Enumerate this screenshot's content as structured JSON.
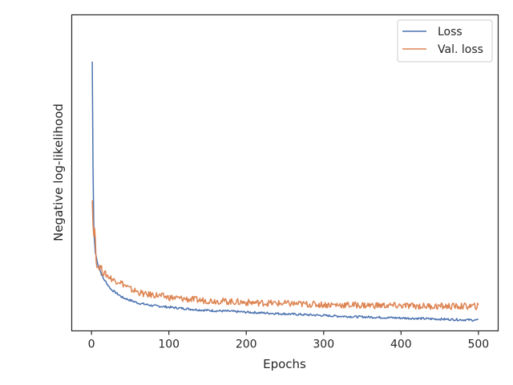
{
  "chart_data": {
    "type": "line",
    "title": "",
    "xlabel": "Epochs",
    "ylabel": "Negative log-likelihood",
    "xlim": [
      -25,
      525
    ],
    "ylim": [
      0,
      1
    ],
    "y_tick_labels_shown": false,
    "x_ticks": [
      0,
      100,
      200,
      300,
      400,
      500
    ],
    "x_tick_labels": [
      "0",
      "100",
      "200",
      "300",
      "400",
      "500"
    ],
    "grid": false,
    "legend_position": "top-right",
    "series": [
      {
        "name": "Loss",
        "color": "#4c72b0",
        "x": [
          1,
          2,
          3,
          4,
          5,
          6,
          8,
          10,
          12,
          15,
          20,
          25,
          30,
          35,
          40,
          50,
          60,
          70,
          80,
          90,
          100,
          120,
          140,
          160,
          180,
          200,
          225,
          250,
          275,
          300,
          325,
          350,
          375,
          400,
          425,
          450,
          475,
          500
        ],
        "values": [
          0.94,
          0.55,
          0.34,
          0.29,
          0.25,
          0.24,
          0.21,
          0.2,
          0.18,
          0.16,
          0.14,
          0.12,
          0.11,
          0.1,
          0.09,
          0.08,
          0.07,
          0.065,
          0.06,
          0.058,
          0.055,
          0.05,
          0.045,
          0.042,
          0.04,
          0.037,
          0.034,
          0.031,
          0.028,
          0.025,
          0.022,
          0.02,
          0.018,
          0.016,
          0.014,
          0.012,
          0.01,
          0.008
        ]
      },
      {
        "name": "Val. loss",
        "color": "#dd8452",
        "x": [
          1,
          2,
          3,
          4,
          5,
          6,
          8,
          10,
          12,
          15,
          20,
          25,
          30,
          35,
          40,
          50,
          60,
          70,
          80,
          90,
          100,
          120,
          140,
          160,
          180,
          200,
          225,
          250,
          275,
          300,
          325,
          350,
          375,
          400,
          425,
          450,
          475,
          500
        ],
        "values": [
          0.44,
          0.35,
          0.31,
          0.34,
          0.3,
          0.22,
          0.2,
          0.2,
          0.2,
          0.18,
          0.17,
          0.16,
          0.15,
          0.15,
          0.14,
          0.12,
          0.11,
          0.1,
          0.1,
          0.095,
          0.09,
          0.085,
          0.08,
          0.078,
          0.075,
          0.072,
          0.07,
          0.068,
          0.066,
          0.064,
          0.063,
          0.062,
          0.061,
          0.06,
          0.059,
          0.058,
          0.058,
          0.058
        ]
      }
    ]
  }
}
